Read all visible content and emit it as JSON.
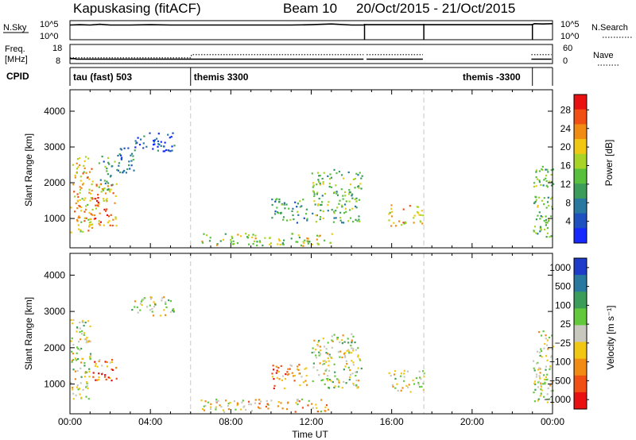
{
  "header": {
    "station": "Kapuskasing (fitACF)",
    "beam": "Beam 10",
    "date_range": "20/Oct/2015 - 21/Oct/2015"
  },
  "chart_data": [
    {
      "type": "line",
      "panel": "N.Sky / N.Search",
      "left_label": "N.Sky",
      "right_label": "N.Search",
      "left_ticks": [
        "10^5",
        "10^0"
      ],
      "right_ticks": [
        "10^5",
        "10^0"
      ],
      "series": [
        {
          "name": "N.Sky",
          "style": "solid",
          "x": [
            0,
            0.5,
            1,
            1.5,
            2,
            3,
            4,
            5,
            6,
            7,
            8,
            9,
            10,
            11,
            12,
            13,
            14,
            14.6,
            14.7,
            15.5,
            16.5,
            17.6,
            23.0,
            23.1,
            23.5,
            24
          ],
          "y": [
            4.2,
            4.3,
            4.2,
            4.4,
            4.2,
            4.2,
            4.3,
            4.2,
            4.2,
            4.2,
            4.2,
            4.2,
            4.2,
            4.2,
            4.3,
            4.5,
            4.2,
            4.2,
            4.3,
            4.3,
            4.3,
            4.3,
            4.3,
            4.6,
            4.5,
            4.6
          ]
        }
      ]
    },
    {
      "type": "line",
      "panel": "Freq. / Nave",
      "left_label": "Freq. [MHz]",
      "right_label": "Nave",
      "left_ticks": [
        "18",
        "8"
      ],
      "right_ticks": [
        "60",
        "0"
      ],
      "series": [
        {
          "name": "Freq.",
          "style": "solid",
          "x": [
            0,
            0.3,
            24
          ],
          "y": [
            10.6,
            10.3,
            10.3
          ]
        },
        {
          "name": "Nave",
          "style": "dotted",
          "x": [
            0,
            6,
            6,
            24
          ],
          "y": [
            18,
            18,
            28,
            28
          ]
        }
      ],
      "gaps": [
        [
          14.65,
          14.75
        ],
        [
          17.6,
          22.95
        ]
      ]
    },
    {
      "type": "table",
      "panel": "CPID",
      "label": "CPID",
      "segments": [
        {
          "label": "tau (fast) 503",
          "x": 0
        },
        {
          "label": "themis 3300",
          "x": 6.0
        },
        {
          "label": "themis -3300",
          "x": 20.05
        }
      ]
    },
    {
      "type": "heatmap",
      "panel": "Power",
      "ylabel": "Slant Range [km]",
      "yticks": [
        1000,
        2000,
        3000,
        4000
      ],
      "ylim": [
        180,
        4600
      ],
      "colorbar_label": "Power [dB]",
      "colorbar_ticks": [
        4,
        8,
        12,
        16,
        20,
        24,
        28
      ],
      "colorbar_colors": [
        "#1428ff",
        "#1e50c0",
        "#2878a0",
        "#3c9c5a",
        "#58c03c",
        "#a8d428",
        "#f0c814",
        "#f08c14",
        "#f05014",
        "#e81010"
      ],
      "blobs": [
        {
          "t0": 0.0,
          "t1": 1.1,
          "r0": 600,
          "r1": 2800,
          "level": 6
        },
        {
          "t0": 1.0,
          "t1": 2.3,
          "r0": 800,
          "r1": 2000,
          "level": 7
        },
        {
          "t0": 1.4,
          "t1": 2.3,
          "r0": 1800,
          "r1": 2800,
          "level": 3
        },
        {
          "t0": 3.0,
          "t1": 5.2,
          "r0": 2900,
          "r1": 3450,
          "level": 1
        },
        {
          "t0": 2.3,
          "t1": 3.2,
          "r0": 2300,
          "r1": 3000,
          "level": 2
        },
        {
          "t0": 6.5,
          "t1": 13.0,
          "r0": 250,
          "r1": 600,
          "level": 5
        },
        {
          "t0": 10.0,
          "t1": 11.8,
          "r0": 900,
          "r1": 1600,
          "level": 3
        },
        {
          "t0": 12.0,
          "t1": 14.5,
          "r0": 900,
          "r1": 2400,
          "level": 4
        },
        {
          "t0": 15.8,
          "t1": 17.6,
          "r0": 800,
          "r1": 1400,
          "level": 6
        },
        {
          "t0": 23.0,
          "t1": 24.0,
          "r0": 500,
          "r1": 2500,
          "level": 4
        }
      ]
    },
    {
      "type": "heatmap",
      "panel": "Velocity",
      "ylabel": "Slant Range [km]",
      "yticks": [
        1000,
        2000,
        3000,
        4000
      ],
      "ylim": [
        180,
        4600
      ],
      "xlabel": "Time UT",
      "xticks": [
        "00:00",
        "04:00",
        "08:00",
        "12:00",
        "16:00",
        "20:00",
        "00:00"
      ],
      "colorbar_label": "Velocity [m s⁻¹]",
      "colorbar_ticks": [
        "1000",
        "500",
        "100",
        "25",
        "−25",
        "−100",
        "−500",
        "−1000"
      ],
      "colorbar_colors": [
        "#1e3cc8",
        "#2878a0",
        "#3c9c5a",
        "#64c83c",
        "#c8c8be",
        "#f0c814",
        "#f08c14",
        "#f05014",
        "#e81010"
      ],
      "blobs": [
        {
          "t0": 0.0,
          "t1": 1.0,
          "r0": 600,
          "r1": 2800,
          "level": 4
        },
        {
          "t0": 0.8,
          "t1": 2.3,
          "r0": 1100,
          "r1": 1700,
          "level": 6
        },
        {
          "t0": 3.0,
          "t1": 5.2,
          "r0": 2900,
          "r1": 3450,
          "level": 4
        },
        {
          "t0": 6.5,
          "t1": 13.0,
          "r0": 250,
          "r1": 600,
          "level": 5
        },
        {
          "t0": 10.0,
          "t1": 11.8,
          "r0": 900,
          "r1": 1600,
          "level": 6
        },
        {
          "t0": 12.0,
          "t1": 14.5,
          "r0": 900,
          "r1": 2400,
          "level": 4
        },
        {
          "t0": 15.8,
          "t1": 17.6,
          "r0": 800,
          "r1": 1400,
          "level": 4
        },
        {
          "t0": 23.0,
          "t1": 24.0,
          "r0": 500,
          "r1": 2500,
          "level": 4
        }
      ]
    }
  ]
}
